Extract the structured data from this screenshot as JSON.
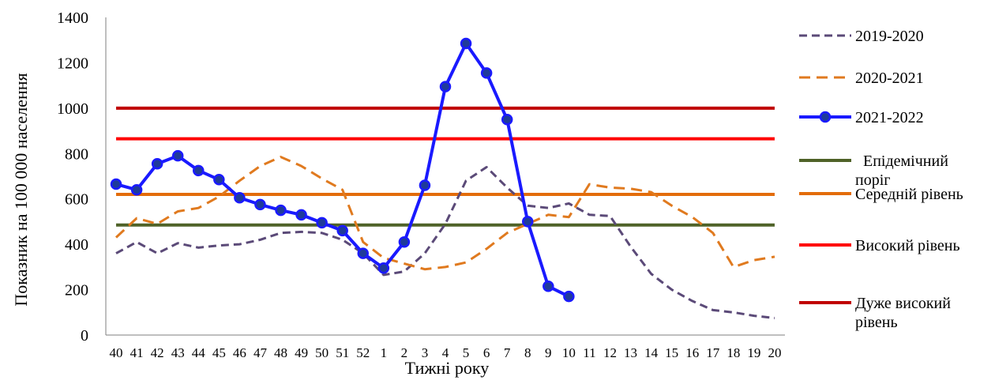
{
  "chart_data": {
    "type": "line",
    "title": "",
    "xlabel": "Тижні року",
    "ylabel": "Показник на 100 000 населення",
    "ylim": [
      0,
      1400
    ],
    "yticks": [
      0,
      200,
      400,
      600,
      800,
      1000,
      1200,
      1400
    ],
    "categories": [
      "40",
      "41",
      "42",
      "43",
      "44",
      "45",
      "46",
      "47",
      "48",
      "49",
      "50",
      "51",
      "52",
      "1",
      "2",
      "3",
      "4",
      "5",
      "6",
      "7",
      "8",
      "9",
      "10",
      "11",
      "12",
      "13",
      "14",
      "15",
      "16",
      "17",
      "18",
      "19",
      "20"
    ],
    "series": [
      {
        "name": "2019-2020",
        "color": "#5b4a78",
        "style": "dashed",
        "values": [
          360,
          410,
          360,
          405,
          385,
          395,
          400,
          420,
          450,
          455,
          450,
          420,
          360,
          265,
          280,
          360,
          490,
          680,
          740,
          650,
          570,
          560,
          580,
          530,
          525,
          390,
          270,
          200,
          150,
          110,
          100,
          85,
          75
        ]
      },
      {
        "name": "2020-2021",
        "color": "#e07a1f",
        "style": "dashed",
        "values": [
          430,
          515,
          490,
          545,
          560,
          610,
          680,
          745,
          785,
          745,
          690,
          640,
          410,
          340,
          315,
          290,
          300,
          320,
          380,
          450,
          490,
          530,
          520,
          665,
          650,
          645,
          630,
          570,
          520,
          450,
          300,
          330,
          345
        ]
      },
      {
        "name": "2021-2022",
        "color": "#1a1aff",
        "style": "solid-markers",
        "values": [
          665,
          640,
          755,
          790,
          725,
          685,
          605,
          575,
          550,
          530,
          495,
          460,
          360,
          295,
          410,
          660,
          1095,
          1285,
          1155,
          950,
          500,
          215,
          170,
          null,
          null,
          null,
          null,
          null,
          null,
          null,
          null,
          null,
          null
        ]
      }
    ],
    "thresholds": [
      {
        "name": "Епідемічний поріг",
        "value": 485,
        "color": "#4f6228"
      },
      {
        "name": "Середній рівень",
        "value": 620,
        "color": "#e36c09"
      },
      {
        "name": "Високий рівень",
        "value": 865,
        "color": "#ff0000"
      },
      {
        "name": "Дуже високий рівень",
        "value": 1000,
        "color": "#c00000"
      }
    ],
    "legend": {
      "position": "right",
      "entries": [
        {
          "label": "2019-2020"
        },
        {
          "label": "2020-2021"
        },
        {
          "label": "2021-2022"
        },
        {
          "label_lines": [
            "Епідемічний",
            "поріг"
          ]
        },
        {
          "label_lines": [
            "Середній рівень"
          ]
        },
        {
          "label_lines": [
            "Високий рівень"
          ]
        },
        {
          "label_lines": [
            "Дуже високий",
            "рівень"
          ]
        }
      ]
    }
  }
}
